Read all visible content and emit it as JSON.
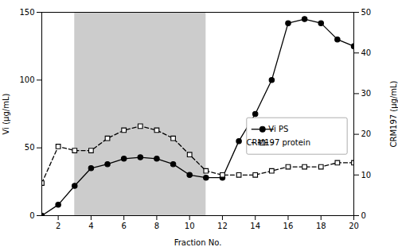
{
  "chart_data": {
    "type": "line",
    "xlabel": "Fraction No.",
    "ylabel": "Vi (µg/mL)",
    "y2label": "CRM197 (µg/mL)",
    "x": [
      1,
      2,
      3,
      4,
      5,
      6,
      7,
      8,
      9,
      10,
      11,
      12,
      13,
      14,
      15,
      16,
      17,
      18,
      19,
      20
    ],
    "series": [
      {
        "name": "Vi PS",
        "color": "#000000",
        "marker": "circle",
        "line_style": "solid",
        "axis": "y",
        "values": [
          0,
          8,
          22,
          35,
          38,
          42,
          43,
          42,
          38,
          30,
          28,
          28,
          55,
          75,
          100,
          142,
          145,
          142,
          130,
          125
        ]
      },
      {
        "name": "CRM197 protein",
        "color": "#000000",
        "marker": "open square",
        "line_style": "dashed",
        "axis": "y2",
        "values": [
          8,
          17,
          16,
          16,
          19,
          21,
          22,
          21,
          19,
          15,
          11,
          10,
          10,
          10,
          11,
          12,
          12,
          12,
          13,
          13
        ]
      }
    ],
    "shaded_region": {
      "x": [
        3,
        11
      ],
      "color": "#cccccc"
    },
    "xlim": [
      1,
      20
    ],
    "xticks": [
      2,
      4,
      6,
      8,
      10,
      12,
      14,
      16,
      18,
      20
    ],
    "ylim": [
      0,
      150
    ],
    "yticks": [
      0,
      50,
      100,
      150
    ],
    "y2lim": [
      0,
      50
    ],
    "y2ticks": [
      0,
      10,
      20,
      30,
      40,
      50
    ],
    "legend": "lower right"
  }
}
